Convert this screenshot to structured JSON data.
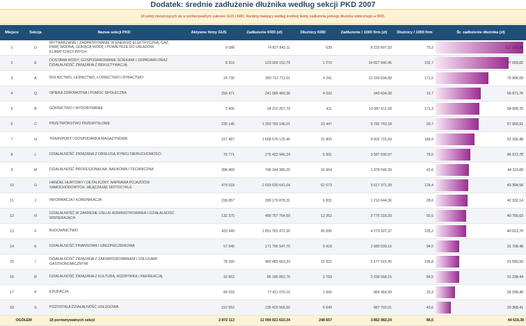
{
  "title": "Dodatek: średnie zadłużenie dłużnika według sekcji PKD 2007",
  "subtitle": "18 sekcji mieszczących się w porównywalnym zakresie GUS i KRD. Ranking malejący według średniej kwoty zadłużenia jednego dłużnika widocznego w KRD.",
  "headers": [
    "Miejsce",
    "Sekcja",
    "Nazwa sekcji PKD",
    "Aktywne firmy GUS",
    "Zadłużenie KRD (zł)",
    "Dłużnicy KRD",
    "Zadłużenie / 1000 firm (zł)",
    "Dłużnicy / 1000 firm",
    "Śr. zadłużenie dłużnika (zł)"
  ],
  "rows": [
    {
      "rank": "1",
      "code": "D",
      "name": "WYTWARZANIE I ZAOPATRYWANIE W ENERGIĘ ELEKTRYCZNĄ, GAZ, PARĘ WODNĄ, GORĄCĄ WODĘ I POWIETRZE DO UKŁADÓW KLIMATYZACYJNYCH",
      "firms": "9 088",
      "debt": "74 827 843,11",
      "debtors": "639",
      "debt_per_1000": "8 233 697,53",
      "debtors_per_1000": "70,3",
      "avg": "117 101,48",
      "avg_value": 117101.48
    },
    {
      "rank": "2",
      "code": "E",
      "name": "DOSTAWA WODY; GOSPODAROWANIE ŚCIEKAMI I ODPADAMI ORAZ DZIAŁALNOŚĆ ZWIĄZANA Z REKULTYWACJĄ",
      "firms": "8 316",
      "debt": "123 309 152,79",
      "debtors": "1 270",
      "debt_per_1000": "14 827 940,45",
      "debtors_per_1000": "152,7",
      "avg": "97 093,82",
      "avg_value": 97093.82
    },
    {
      "rank": "3",
      "code": "A",
      "name": "ROLNICTWO, LEŚNICTWO, ŁOWIECTWO I RYBACTWO",
      "firms": "24 730",
      "debt": "300 712 711,61",
      "debtors": "4 241",
      "debt_per_1000": "12 159 834,68",
      "debtors_per_1000": "171,5",
      "avg": "70 906,09",
      "avg_value": 70906.09
    },
    {
      "rank": "4",
      "code": "Q",
      "name": "OPIEKA ZDROWOTNA I POMOC SPOŁECZNA",
      "firms": "255 471",
      "debt": "241 086 469,38",
      "debtors": "4 020",
      "debt_per_1000": "943 694,08",
      "debtors_per_1000": "15,7",
      "avg": "59 971,76",
      "avg_value": 59971.76
    },
    {
      "rank": "5",
      "code": "B",
      "name": "GÓRNICTWO I WYDOBYWANIE",
      "firms": "2 400",
      "debt": "24 210 267,79",
      "debtors": "411",
      "debt_per_1000": "10 087 611,58",
      "debtors_per_1000": "171,3",
      "avg": "58 905,76",
      "avg_value": 58905.76
    },
    {
      "rank": "6",
      "code": "C",
      "name": "PRZETWÓRSTWO PRZEMYSŁOWE",
      "firms": "235 145",
      "debt": "1 359 783 146,01",
      "debtors": "23 447",
      "debt_per_1000": "5 782 743,18",
      "debtors_per_1000": "99,7",
      "avg": "57 993,91",
      "avg_value": 57993.91
    },
    {
      "rank": "7",
      "code": "H",
      "name": "TRANSPORT I GOSPODARKA MAGAZYNOWA",
      "firms": "167 487",
      "debt": "1 658 576 125,46",
      "debtors": "31 800",
      "debt_per_1000": "9 902 715,59",
      "debtors_per_1000": "189,9",
      "avg": "52 156,48",
      "avg_value": 52156.48
    },
    {
      "rank": "8",
      "code": "L",
      "name": "DZIAŁALNOŚĆ ZWIĄZANA Z OBSŁUGĄ RYNKU NIERUCHOMOŚCI",
      "firms": "76 771",
      "debt": "275 422 946,24",
      "debtors": "5 991",
      "debt_per_1000": "3 587 590,97",
      "debtors_per_1000": "78,0",
      "avg": "45 972,78",
      "avg_value": 45972.78
    },
    {
      "rank": "9",
      "code": "M",
      "name": "DZIAŁALNOŚĆ PROFESJONALNA, NAUKOWA I TECHNICZNA",
      "firms": "398 469",
      "debt": "748 344 386,25",
      "debtors": "16 964",
      "debt_per_1000": "1 878 049,20",
      "debtors_per_1000": "42,6",
      "avg": "44 113,68",
      "avg_value": 44113.68
    },
    {
      "rank": "10",
      "code": "G",
      "name": "HANDEL HURTOWY I DETALICZNY; NAPRAWA POJAZDÓW SAMOCHODOWYCH, WŁĄCZAJĄC MOTOCYKLE",
      "firms": "479 518",
      "debt": "2 693 630 641,04",
      "debtors": "62 073",
      "debt_per_1000": "5 617 371,28",
      "debtors_per_1000": "129,4",
      "avg": "43 394,56",
      "avg_value": 43394.56
    },
    {
      "rank": "11",
      "code": "J",
      "name": "INFORMACJA I KOMUNIKACJA",
      "firms": "238 857",
      "debt": "289 170 878,31",
      "debtors": "6 831",
      "debt_per_1000": "1 210 644,36",
      "debtors_per_1000": "28,6",
      "avg": "42 332,14",
      "avg_value": 42332.14
    },
    {
      "rank": "12",
      "code": "N",
      "name": "DZIAŁALNOŚĆ W ZAKRESIE USŁUG ADMINISTROWANIA I DZIAŁALNOŚĆ WSPIERAJĄCA",
      "firms": "132 375",
      "debt": "499 757 764,59",
      "debtors": "12 262",
      "debt_per_1000": "3 775 318,33",
      "debtors_per_1000": "92,6",
      "avg": "40 756,63",
      "avg_value": 40756.63
    },
    {
      "rank": "13",
      "code": "F",
      "name": "BUDOWNICTWO",
      "firms": "433 349",
      "debt": "1 851 781 472,36",
      "debtors": "45 595",
      "debt_per_1000": "4 273 187,37",
      "debtors_per_1000": "105,2",
      "avg": "40 613,70",
      "avg_value": 40613.7
    },
    {
      "rank": "14",
      "code": "K",
      "name": "DZIAŁALNOŚĆ FINANSOWA I UBEZPIECZENIOWA",
      "firms": "57 640",
      "debt": "171 796 547,75",
      "debtors": "5 418",
      "debt_per_1000": "2 980 509,16",
      "debtors_per_1000": "94,0",
      "avg": "31 708,48",
      "avg_value": 31708.48
    },
    {
      "rank": "15",
      "code": "I",
      "name": "DZIAŁALNOŚĆ ZWIĄZANA Z ZAKWATEROWANIEM I USŁUGAMI GASTRONOMICZNYMI",
      "firms": "78 260",
      "debt": "483 483 663,23",
      "debtors": "15 321",
      "debt_per_1000": "6 177 915,45",
      "debtors_per_1000": "195,8",
      "avg": "31 556,93",
      "avg_value": 31556.93
    },
    {
      "rank": "16",
      "code": "R",
      "name": "DZIAŁALNOŚĆ ZWIĄZANA Z KULTURĄ, ROZRYWKĄ I REKREACJĄ",
      "firms": "32 652",
      "debt": "86 186 852,76",
      "debtors": "2 759",
      "debt_per_1000": "2 639 558,15",
      "debtors_per_1000": "84,5",
      "avg": "31 238,44",
      "avg_value": 31238.44
    },
    {
      "rank": "17",
      "code": "P",
      "name": "EDUKACJA",
      "firms": "89 033",
      "debt": "77 411 076,16",
      "debtors": "2 966",
      "debt_per_1000": "869 464,99",
      "debtors_per_1000": "33,3",
      "avg": "26 099,49",
      "avg_value": 26099.49
    },
    {
      "rank": "18",
      "code": "S",
      "name": "POZOSTAŁA DZIAŁALNOŚĆ USŁUGOWA",
      "firms": "152 552",
      "debt": "135 429 565,50",
      "debtors": "6 649",
      "debt_per_1000": "887 760,01",
      "debtors_per_1000": "43,6",
      "avg": "20 368,41",
      "avg_value": 20368.41
    }
  ],
  "total": {
    "label": "OGÓŁEM",
    "note": "18 porównywalnych sekcji",
    "firms": "2 872 113",
    "debt": "11 094 921 610,34",
    "debtors": "248 657",
    "debt_per_1000": "3 862 982,24",
    "debtors_per_1000": "86,6",
    "avg": "44 619,38"
  },
  "colors": {
    "header_bg": "#1f4e79",
    "bar_start": "#f6e6f5",
    "bar_end": "#9b2c91",
    "band": "#fbf3d4"
  }
}
